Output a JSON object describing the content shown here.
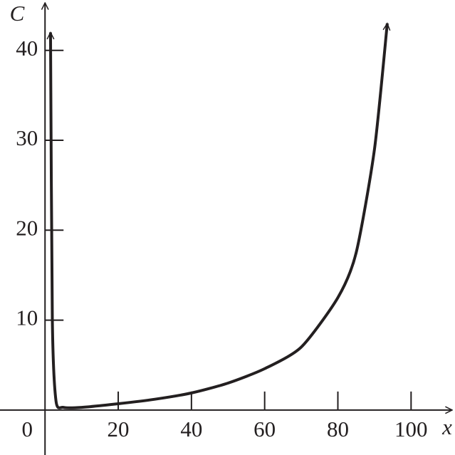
{
  "chart_data": {
    "type": "line",
    "x_label": "x",
    "y_label": "C",
    "x": [
      1.5,
      2,
      3,
      5,
      10,
      20,
      30,
      40,
      50,
      60,
      70,
      80,
      85,
      90,
      93.5
    ],
    "series": [
      {
        "color": "#231f20",
        "values": [
          42,
          10,
          1,
          0.3,
          0.3,
          0.7,
          1.2,
          1.9,
          3,
          4.6,
          7,
          12.5,
          17.5,
          29,
          43
        ]
      }
    ],
    "xlim": [
      -12.3,
      112
    ],
    "ylim": [
      -5,
      45.6
    ],
    "xticks": [
      0,
      20,
      40,
      60,
      80,
      100
    ],
    "yticks": [
      10,
      20,
      30,
      40
    ]
  }
}
